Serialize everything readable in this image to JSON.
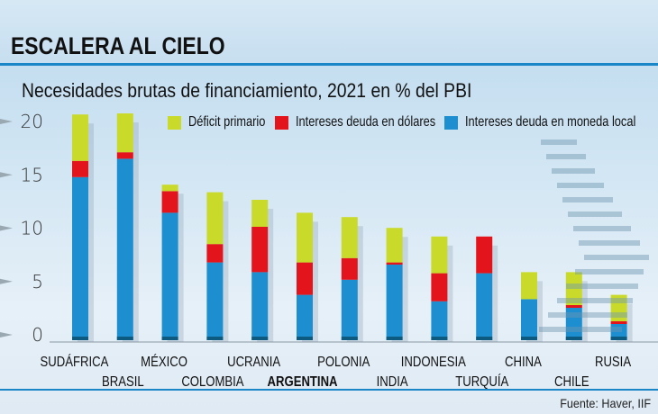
{
  "header": {
    "title": "ESCALERA AL CIELO",
    "subtitle": "Necesidades brutas de financiamiento, 2021 en % del PBI"
  },
  "footer": {
    "source": "Fuente: Haver, IIF"
  },
  "colors": {
    "deficit": "#c9da2a",
    "usd": "#e3141b",
    "local": "#1d8fd1",
    "accent": "#1a86c8"
  },
  "chart_data": {
    "type": "bar",
    "stacked": true,
    "title": "Necesidades brutas de financiamiento, 2021 en % del PBI",
    "categories": [
      "SUDÁFRICA",
      "BRASIL",
      "MÉXICO",
      "COLOMBIA",
      "UCRANIA",
      "ARGENTINA",
      "POLONIA",
      "INDIA",
      "INDONESIA",
      "TURQUÍA",
      "CHINA",
      "CHILE",
      "RUSIA"
    ],
    "highlight": "ARGENTINA",
    "series": [
      {
        "name": "Intereses deuda en moneda local",
        "color": "#1d8fd1",
        "values": [
          15.1,
          16.8,
          11.8,
          7.2,
          6.3,
          4.2,
          5.6,
          7.0,
          3.6,
          6.2,
          3.8,
          3.0,
          1.5
        ]
      },
      {
        "name": "Intereses deuda en dólares",
        "color": "#e3141b",
        "values": [
          1.5,
          0.6,
          2.0,
          1.7,
          4.2,
          3.0,
          2.0,
          0.2,
          2.6,
          3.4,
          0,
          0.25,
          0.25
        ]
      },
      {
        "name": "Déficit primario",
        "color": "#c9da2a",
        "values": [
          4.3,
          3.6,
          0.6,
          4.8,
          2.5,
          4.6,
          3.8,
          3.2,
          3.4,
          0,
          2.5,
          3.05,
          2.45
        ]
      }
    ],
    "yticks": [
      "0",
      "5",
      "10",
      "15",
      "20"
    ],
    "ylim": [
      0,
      21
    ],
    "grid": false,
    "legend": "top"
  }
}
